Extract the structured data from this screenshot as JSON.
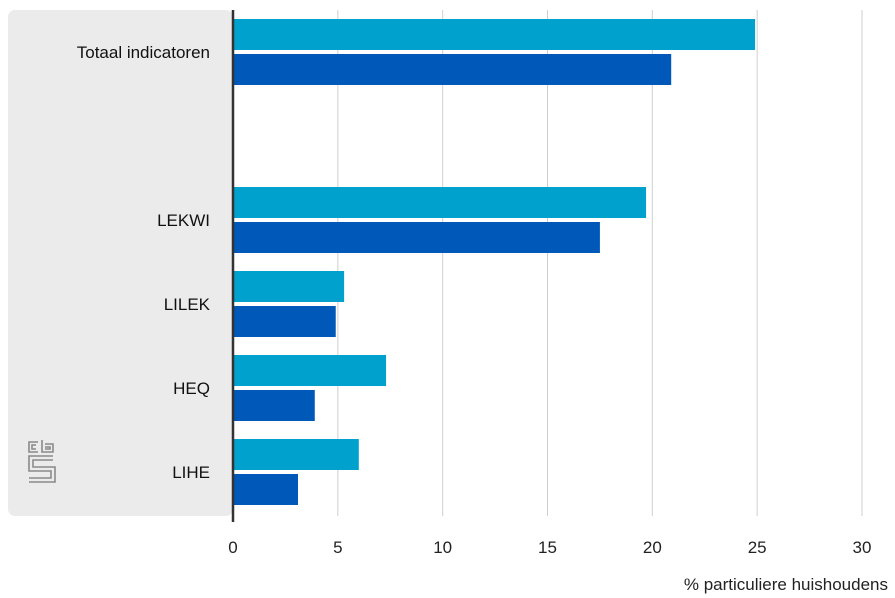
{
  "chart_data": {
    "type": "bar",
    "orientation": "horizontal",
    "categories": [
      "Totaal indicatoren",
      "",
      "LEKWI",
      "LILEK",
      "HEQ",
      "LIHE"
    ],
    "series": [
      {
        "values": [
          24.9,
          null,
          19.7,
          5.3,
          7.3,
          6.0
        ],
        "color": "#00a1cd"
      },
      {
        "values": [
          20.9,
          null,
          17.5,
          4.9,
          3.9,
          3.1
        ],
        "color": "#0058b8"
      }
    ],
    "xlabel": "% particuliere huishoudens",
    "xlim": [
      0,
      30
    ],
    "xticks": [
      0,
      5,
      10,
      15,
      20,
      25,
      30
    ],
    "grid": "vertical",
    "legend": "none"
  },
  "colors": {
    "label_panel": "#ebebeb",
    "gridline": "#cfcfcf",
    "axis": "#333333",
    "logo": "#8a8a8a"
  },
  "logo": {
    "name": "cbs-logo",
    "text": "cbs"
  }
}
